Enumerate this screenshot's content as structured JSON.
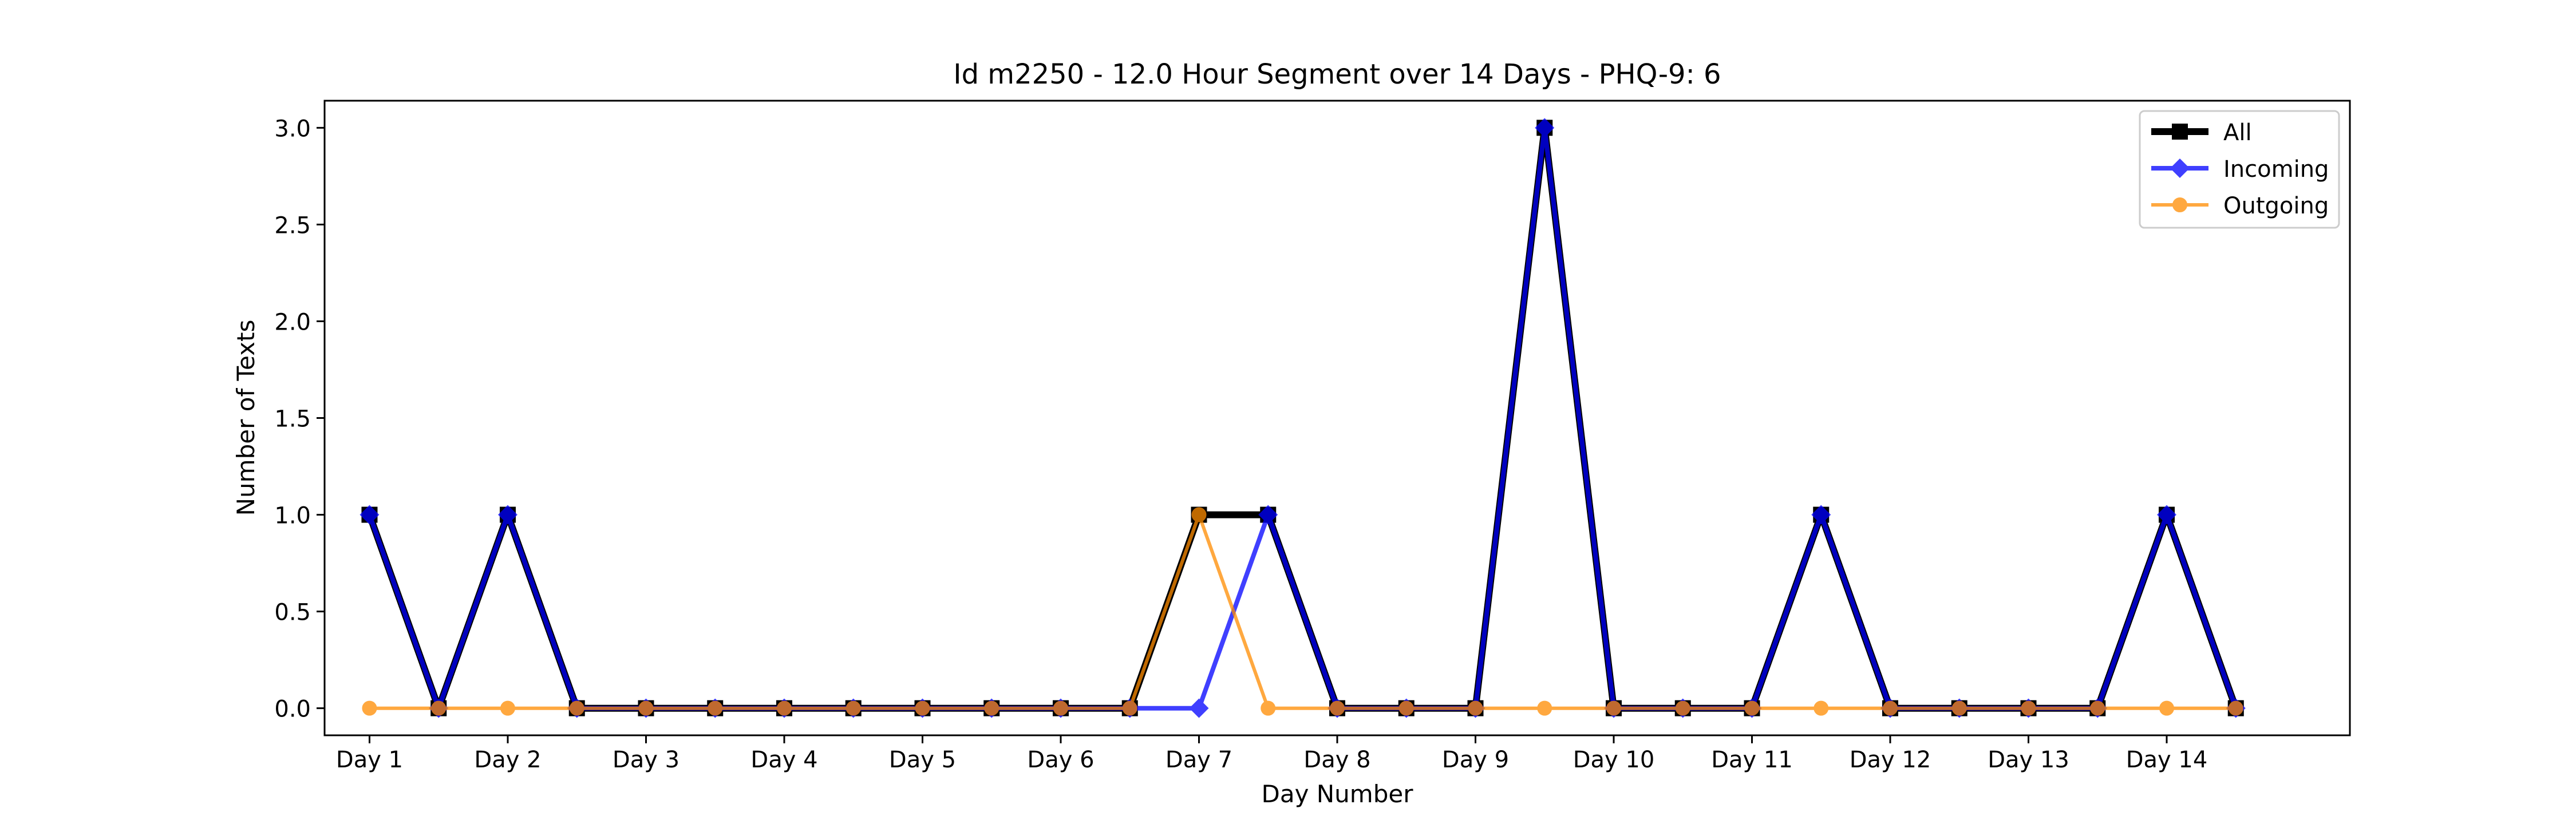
{
  "chart_data": {
    "type": "line",
    "title": "Id m2250 - 12.0 Hour Segment over 14 Days - PHQ-9: 6",
    "xlabel": "Day Number",
    "ylabel": "Number of Texts",
    "ylim": [
      -0.14,
      3.14
    ],
    "xlim": [
      -0.65,
      28.65
    ],
    "grid": false,
    "legend_position": "top-right",
    "x_ticks": [
      {
        "x": 0,
        "label": "Day 1"
      },
      {
        "x": 2,
        "label": "Day 2"
      },
      {
        "x": 4,
        "label": "Day 3"
      },
      {
        "x": 6,
        "label": "Day 4"
      },
      {
        "x": 8,
        "label": "Day 5"
      },
      {
        "x": 10,
        "label": "Day 6"
      },
      {
        "x": 12,
        "label": "Day 7"
      },
      {
        "x": 14,
        "label": "Day 8"
      },
      {
        "x": 16,
        "label": "Day 9"
      },
      {
        "x": 18,
        "label": "Day 10"
      },
      {
        "x": 20,
        "label": "Day 11"
      },
      {
        "x": 22,
        "label": "Day 12"
      },
      {
        "x": 24,
        "label": "Day 13"
      },
      {
        "x": 26,
        "label": "Day 14"
      }
    ],
    "y_ticks": [
      {
        "y": 0.0,
        "label": "0.0"
      },
      {
        "y": 0.5,
        "label": "0.5"
      },
      {
        "y": 1.0,
        "label": "1.0"
      },
      {
        "y": 1.5,
        "label": "1.5"
      },
      {
        "y": 2.0,
        "label": "2.0"
      },
      {
        "y": 2.5,
        "label": "2.5"
      },
      {
        "y": 3.0,
        "label": "3.0"
      }
    ],
    "series": [
      {
        "name": "All",
        "color": "#000000",
        "marker": "square",
        "x": [
          0,
          1,
          2,
          3,
          4,
          5,
          6,
          7,
          8,
          9,
          10,
          11,
          12,
          13,
          14,
          15,
          16,
          17,
          18,
          19,
          20,
          21,
          22,
          23,
          24,
          25,
          26,
          27
        ],
        "values": [
          1,
          0,
          1,
          0,
          0,
          0,
          0,
          0,
          0,
          0,
          0,
          0,
          1,
          1,
          0,
          0,
          0,
          3,
          0,
          0,
          0,
          1,
          0,
          0,
          0,
          0,
          1,
          0
        ]
      },
      {
        "name": "Incoming",
        "color": "#0000ff",
        "marker": "diamond",
        "x": [
          0,
          1,
          2,
          3,
          4,
          5,
          6,
          7,
          8,
          9,
          10,
          11,
          12,
          13,
          14,
          15,
          16,
          17,
          18,
          19,
          20,
          21,
          22,
          23,
          24,
          25,
          26,
          27
        ],
        "values": [
          1,
          0,
          1,
          0,
          0,
          0,
          0,
          0,
          0,
          0,
          0,
          0,
          0,
          1,
          0,
          0,
          0,
          3,
          0,
          0,
          0,
          1,
          0,
          0,
          0,
          0,
          1,
          0
        ]
      },
      {
        "name": "Outgoing",
        "color": "#ff8c00",
        "marker": "circle",
        "x": [
          0,
          1,
          2,
          3,
          4,
          5,
          6,
          7,
          8,
          9,
          10,
          11,
          12,
          13,
          14,
          15,
          16,
          17,
          18,
          19,
          20,
          21,
          22,
          23,
          24,
          25,
          26,
          27
        ],
        "values": [
          0,
          0,
          0,
          0,
          0,
          0,
          0,
          0,
          0,
          0,
          0,
          0,
          1,
          0,
          0,
          0,
          0,
          0,
          0,
          0,
          0,
          0,
          0,
          0,
          0,
          0,
          0,
          0
        ]
      }
    ]
  }
}
